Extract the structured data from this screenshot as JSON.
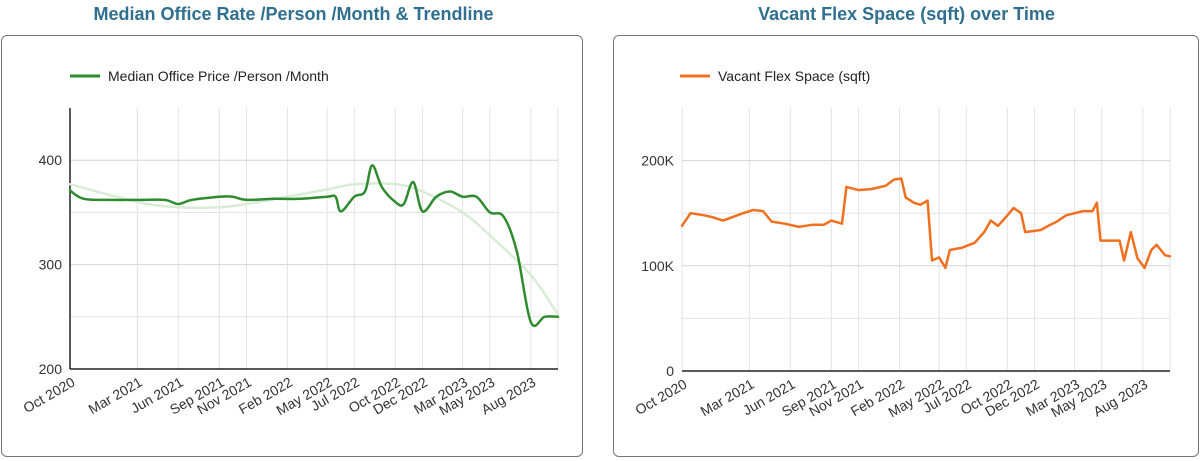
{
  "charts": [
    {
      "title": "Median Office Rate /Person /Month & Trendline",
      "accent": "#2e8b2e",
      "trend_color": "#d8ecd6"
    },
    {
      "title": "Vacant Flex Space (sqft) over Time",
      "accent": "#f07020"
    }
  ],
  "chart_data": [
    {
      "type": "line",
      "title": "Median Office Rate /Person /Month & Trendline",
      "x_range": [
        "2020-10-01",
        "2023-10-01"
      ],
      "ylim": [
        200,
        450
      ],
      "yticks": [
        200,
        300,
        400
      ],
      "ytick_labels": [
        "200",
        "300",
        "400"
      ],
      "xtick_labels": [
        "Oct 2020",
        "Mar 2021",
        "Jun 2021",
        "Sep 2021",
        "Nov 2021",
        "Feb 2022",
        "May 2022",
        "Jul 2022",
        "Oct 2022",
        "Dec 2022",
        "Mar 2023",
        "May 2023",
        "Aug 2023"
      ],
      "xtick_dates": [
        "2020-10-01",
        "2021-03-01",
        "2021-06-01",
        "2021-09-01",
        "2021-11-01",
        "2022-02-01",
        "2022-05-01",
        "2022-07-01",
        "2022-10-01",
        "2022-12-01",
        "2023-03-01",
        "2023-05-01",
        "2023-08-01"
      ],
      "grid": true,
      "legend": "top-left",
      "series": [
        {
          "name": "Median Office Price /Person /Month",
          "color": "#2e8b2e",
          "points": [
            [
              "2020-10-01",
              371
            ],
            [
              "2020-11-01",
              363
            ],
            [
              "2021-01-01",
              362
            ],
            [
              "2021-03-01",
              362
            ],
            [
              "2021-05-01",
              362
            ],
            [
              "2021-06-01",
              358
            ],
            [
              "2021-07-01",
              362
            ],
            [
              "2021-09-01",
              365
            ],
            [
              "2021-10-01",
              365
            ],
            [
              "2021-11-01",
              362
            ],
            [
              "2022-01-01",
              363
            ],
            [
              "2022-03-01",
              363
            ],
            [
              "2022-05-01",
              365
            ],
            [
              "2022-05-20",
              365
            ],
            [
              "2022-06-01",
              351
            ],
            [
              "2022-07-01",
              365
            ],
            [
              "2022-07-25",
              370
            ],
            [
              "2022-08-10",
              395
            ],
            [
              "2022-09-01",
              374
            ],
            [
              "2022-10-01",
              360
            ],
            [
              "2022-10-20",
              358
            ],
            [
              "2022-11-10",
              379
            ],
            [
              "2022-12-01",
              351
            ],
            [
              "2023-01-01",
              365
            ],
            [
              "2023-02-01",
              370
            ],
            [
              "2023-03-01",
              365
            ],
            [
              "2023-04-01",
              365
            ],
            [
              "2023-05-01",
              350
            ],
            [
              "2023-06-01",
              346
            ],
            [
              "2023-07-01",
              312
            ],
            [
              "2023-08-01",
              245
            ],
            [
              "2023-09-01",
              250
            ],
            [
              "2023-10-01",
              250
            ]
          ]
        },
        {
          "name": "Trendline",
          "color": "#d8ecd6",
          "points": [
            [
              "2020-10-01",
              377
            ],
            [
              "2021-03-01",
              360
            ],
            [
              "2021-06-01",
              355
            ],
            [
              "2021-09-01",
              355
            ],
            [
              "2021-11-01",
              358
            ],
            [
              "2022-02-01",
              365
            ],
            [
              "2022-05-01",
              372
            ],
            [
              "2022-07-01",
              377
            ],
            [
              "2022-10-01",
              377
            ],
            [
              "2022-12-01",
              370
            ],
            [
              "2023-03-01",
              350
            ],
            [
              "2023-05-01",
              328
            ],
            [
              "2023-08-01",
              290
            ],
            [
              "2023-10-01",
              252
            ]
          ]
        }
      ]
    },
    {
      "type": "line",
      "title": "Vacant Flex Space (sqft) over Time",
      "x_range": [
        "2020-10-01",
        "2023-10-01"
      ],
      "ylim": [
        0,
        250000
      ],
      "yticks": [
        0,
        100000,
        200000
      ],
      "ytick_labels": [
        "0",
        "100K",
        "200K"
      ],
      "xtick_labels": [
        "Oct 2020",
        "Mar 2021",
        "Jun 2021",
        "Sep 2021",
        "Nov 2021",
        "Feb 2022",
        "May 2022",
        "Jul 2022",
        "Oct 2022",
        "Dec 2022",
        "Mar 2023",
        "May 2023",
        "Aug 2023"
      ],
      "xtick_dates": [
        "2020-10-01",
        "2021-03-01",
        "2021-06-01",
        "2021-09-01",
        "2021-11-01",
        "2022-02-01",
        "2022-05-01",
        "2022-07-01",
        "2022-10-01",
        "2022-12-01",
        "2023-03-01",
        "2023-05-01",
        "2023-08-01"
      ],
      "grid": true,
      "legend": "top-left",
      "series": [
        {
          "name": "Vacant Flex Space (sqft)",
          "color": "#f07020",
          "points": [
            [
              "2020-10-01",
              138000
            ],
            [
              "2020-10-20",
              150000
            ],
            [
              "2020-11-20",
              148000
            ],
            [
              "2020-12-10",
              146000
            ],
            [
              "2021-01-01",
              143000
            ],
            [
              "2021-01-20",
              146000
            ],
            [
              "2021-02-15",
              150000
            ],
            [
              "2021-03-10",
              153000
            ],
            [
              "2021-04-01",
              152000
            ],
            [
              "2021-04-20",
              142000
            ],
            [
              "2021-05-20",
              140000
            ],
            [
              "2021-06-20",
              137000
            ],
            [
              "2021-07-20",
              139000
            ],
            [
              "2021-08-15",
              139000
            ],
            [
              "2021-09-01",
              143000
            ],
            [
              "2021-09-25",
              140000
            ],
            [
              "2021-10-05",
              175000
            ],
            [
              "2021-11-01",
              172000
            ],
            [
              "2021-12-01",
              173000
            ],
            [
              "2022-01-01",
              176000
            ],
            [
              "2022-01-20",
              182000
            ],
            [
              "2022-02-05",
              183000
            ],
            [
              "2022-02-15",
              165000
            ],
            [
              "2022-03-05",
              160000
            ],
            [
              "2022-03-20",
              158000
            ],
            [
              "2022-04-05",
              162000
            ],
            [
              "2022-04-15",
              105000
            ],
            [
              "2022-05-01",
              108000
            ],
            [
              "2022-05-15",
              98000
            ],
            [
              "2022-05-25",
              115000
            ],
            [
              "2022-06-20",
              117000
            ],
            [
              "2022-07-20",
              122000
            ],
            [
              "2022-08-10",
              132000
            ],
            [
              "2022-08-25",
              143000
            ],
            [
              "2022-09-10",
              138000
            ],
            [
              "2022-09-25",
              145000
            ],
            [
              "2022-10-15",
              155000
            ],
            [
              "2022-11-01",
              150000
            ],
            [
              "2022-11-10",
              132000
            ],
            [
              "2022-12-15",
              134000
            ],
            [
              "2023-01-01",
              138000
            ],
            [
              "2023-01-20",
              142000
            ],
            [
              "2023-02-10",
              148000
            ],
            [
              "2023-03-01",
              150000
            ],
            [
              "2023-03-20",
              152000
            ],
            [
              "2023-04-10",
              152000
            ],
            [
              "2023-04-20",
              160000
            ],
            [
              "2023-04-28",
              124000
            ],
            [
              "2023-05-20",
              124000
            ],
            [
              "2023-06-10",
              124000
            ],
            [
              "2023-06-20",
              105000
            ],
            [
              "2023-07-05",
              132000
            ],
            [
              "2023-07-20",
              107000
            ],
            [
              "2023-08-05",
              98000
            ],
            [
              "2023-08-20",
              115000
            ],
            [
              "2023-09-01",
              120000
            ],
            [
              "2023-09-20",
              110000
            ],
            [
              "2023-10-01",
              109000
            ]
          ]
        }
      ]
    }
  ]
}
